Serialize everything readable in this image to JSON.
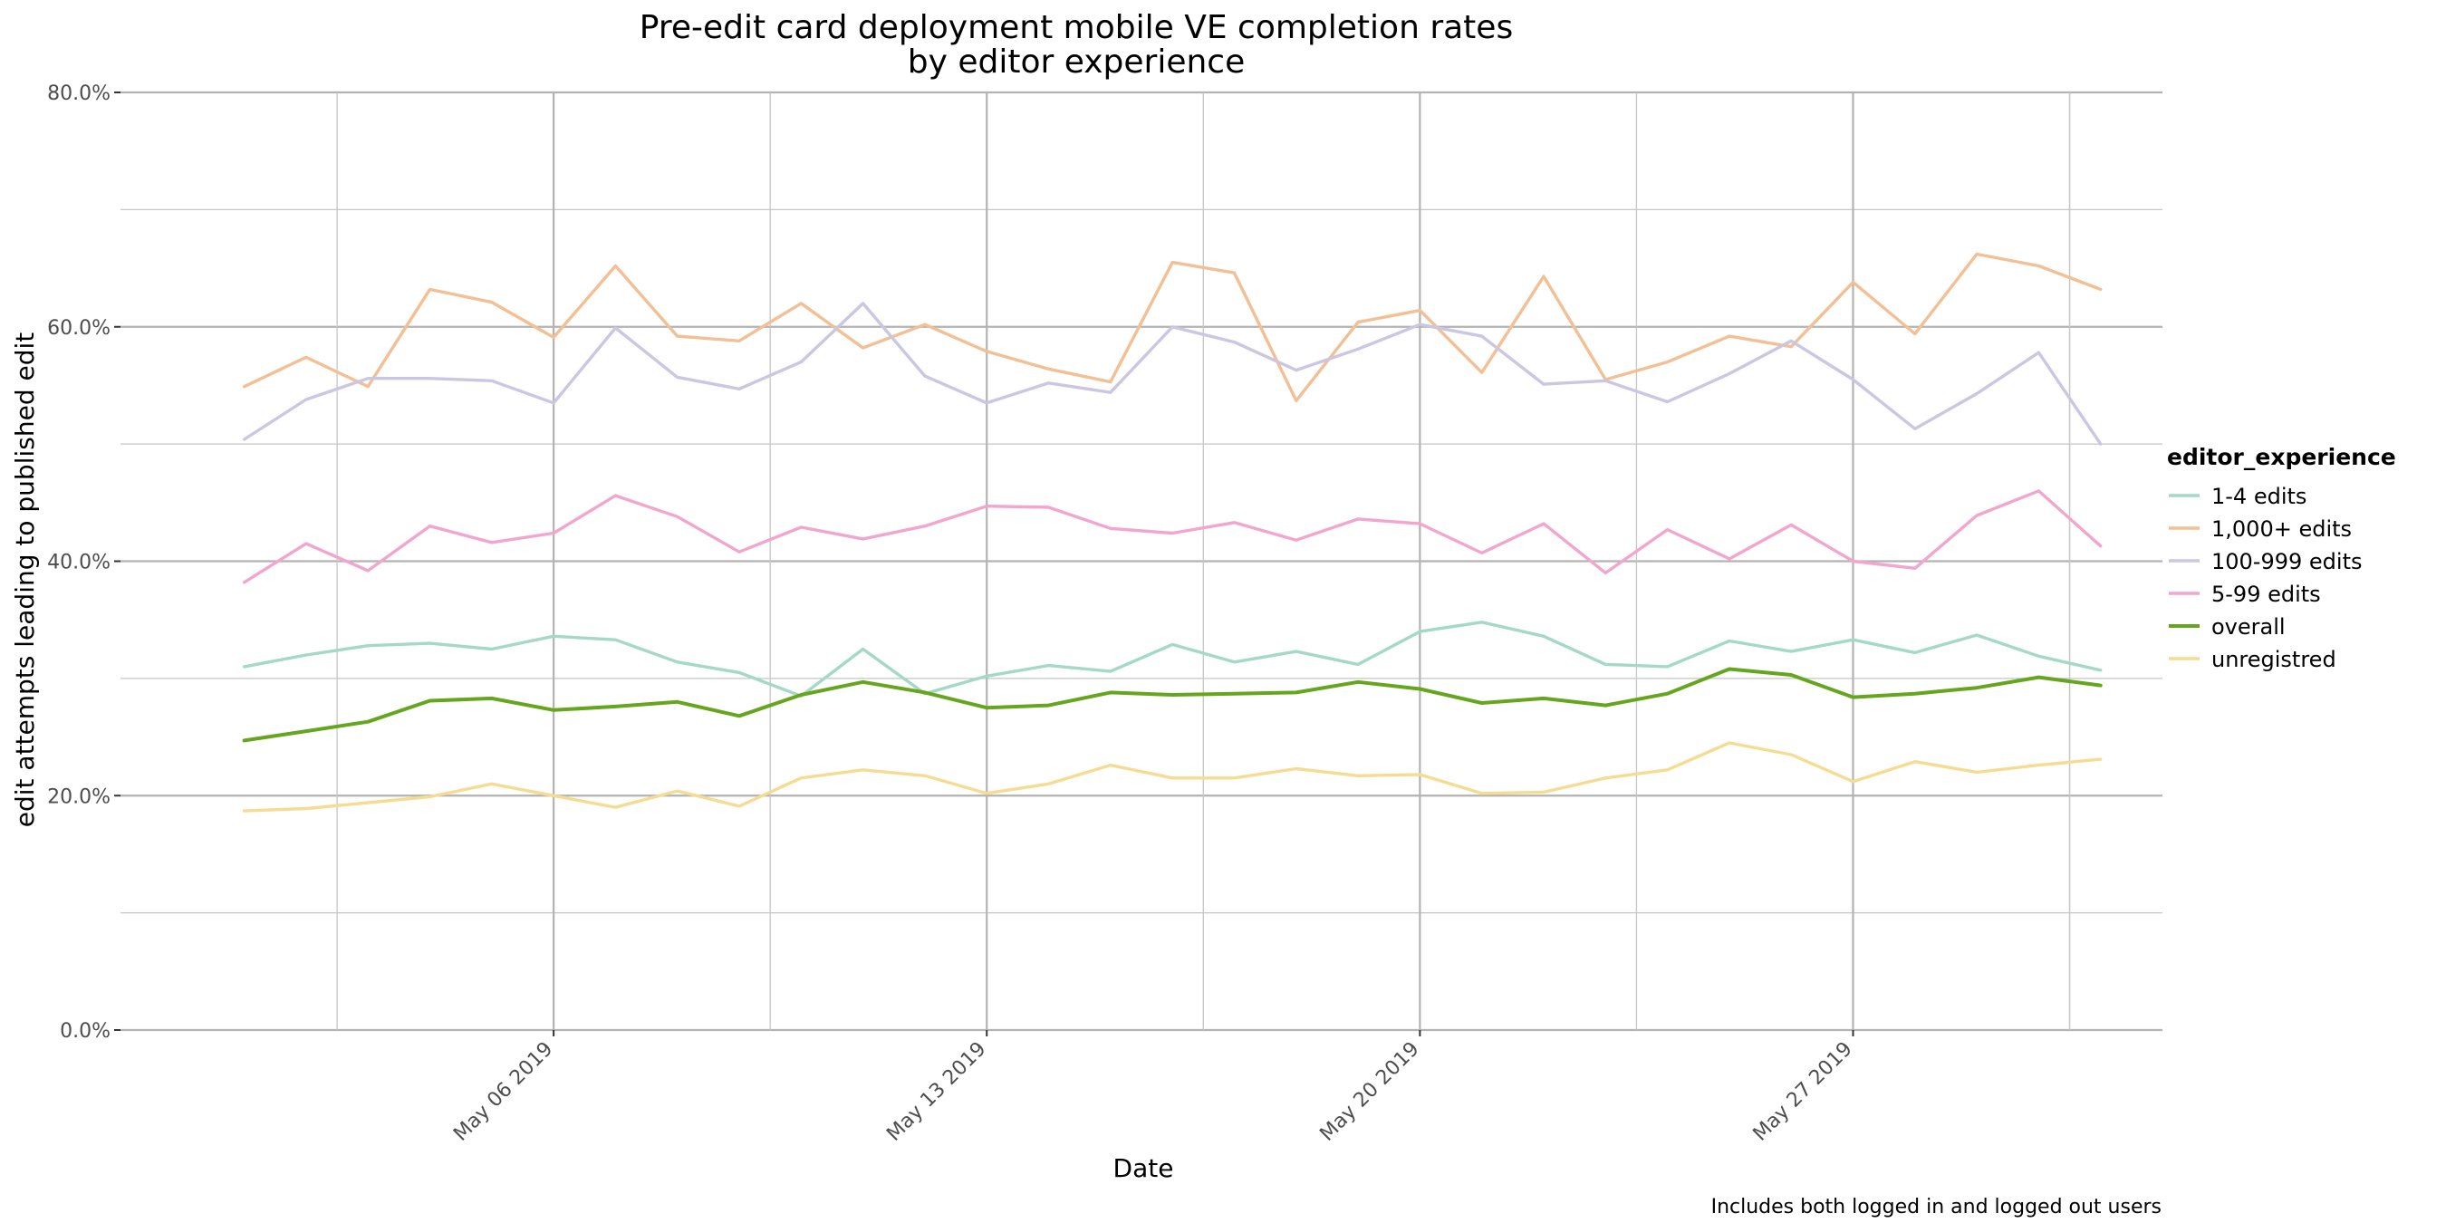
{
  "chart_data": {
    "type": "line",
    "title": "Pre-edit card deployment mobile VE completion rates",
    "subtitle": "by editor experience",
    "xlabel": "Date",
    "ylabel": "edit attempts leading to published edit",
    "caption": "Includes both logged in and logged out users",
    "x_ticks": [
      "May 06 2019",
      "May 13 2019",
      "May 20 2019",
      "May 27 2019"
    ],
    "y_ticks": [
      "0.0%",
      "20.0%",
      "40.0%",
      "60.0%",
      "80.0%"
    ],
    "ylim": [
      0,
      0.8
    ],
    "xlim": [
      "2019-04-29",
      "2019-06-01"
    ],
    "grid": true,
    "legend": {
      "title": "editor_experience",
      "position": "right"
    },
    "x": [
      "2019-05-01",
      "2019-05-02",
      "2019-05-03",
      "2019-05-04",
      "2019-05-05",
      "2019-05-06",
      "2019-05-07",
      "2019-05-08",
      "2019-05-09",
      "2019-05-10",
      "2019-05-11",
      "2019-05-12",
      "2019-05-13",
      "2019-05-14",
      "2019-05-15",
      "2019-05-16",
      "2019-05-17",
      "2019-05-18",
      "2019-05-19",
      "2019-05-20",
      "2019-05-21",
      "2019-05-22",
      "2019-05-23",
      "2019-05-24",
      "2019-05-25",
      "2019-05-26",
      "2019-05-27",
      "2019-05-28",
      "2019-05-29",
      "2019-05-30",
      "2019-05-31"
    ],
    "series": [
      {
        "name": "1-4 edits",
        "color": "#a3d9c6",
        "values": [
          0.31,
          0.32,
          0.328,
          0.33,
          0.325,
          0.336,
          0.333,
          0.314,
          0.305,
          0.285,
          0.325,
          0.287,
          0.302,
          0.311,
          0.306,
          0.329,
          0.314,
          0.323,
          0.312,
          0.34,
          0.348,
          0.336,
          0.312,
          0.31,
          0.332,
          0.323,
          0.333,
          0.322,
          0.337,
          0.319,
          0.307
        ]
      },
      {
        "name": "1,000+ edits",
        "color": "#f3bf94",
        "values": [
          0.549,
          0.574,
          0.549,
          0.632,
          0.621,
          0.591,
          0.652,
          0.592,
          0.588,
          0.62,
          0.582,
          0.602,
          0.579,
          0.564,
          0.553,
          0.655,
          0.646,
          0.537,
          0.604,
          0.614,
          0.561,
          0.643,
          0.555,
          0.57,
          0.592,
          0.583,
          0.638,
          0.594,
          0.662,
          0.652,
          0.632
        ]
      },
      {
        "name": "100-999 edits",
        "color": "#cbc6e2",
        "values": [
          0.504,
          0.538,
          0.556,
          0.556,
          0.554,
          0.535,
          0.599,
          0.557,
          0.547,
          0.57,
          0.62,
          0.558,
          0.535,
          0.552,
          0.544,
          0.6,
          0.587,
          0.563,
          0.581,
          0.602,
          0.592,
          0.551,
          0.554,
          0.536,
          0.56,
          0.588,
          0.555,
          0.513,
          0.543,
          0.578,
          0.5
        ]
      },
      {
        "name": "5-99 edits",
        "color": "#f2a6ce",
        "values": [
          0.382,
          0.415,
          0.392,
          0.43,
          0.416,
          0.424,
          0.456,
          0.438,
          0.408,
          0.429,
          0.419,
          0.43,
          0.447,
          0.446,
          0.428,
          0.424,
          0.433,
          0.418,
          0.436,
          0.432,
          0.407,
          0.432,
          0.39,
          0.427,
          0.402,
          0.431,
          0.4,
          0.394,
          0.439,
          0.46,
          0.413
        ]
      },
      {
        "name": "overall",
        "color": "#66a61e",
        "values": [
          0.247,
          0.255,
          0.263,
          0.281,
          0.283,
          0.273,
          0.276,
          0.28,
          0.268,
          0.286,
          0.297,
          0.288,
          0.275,
          0.277,
          0.288,
          0.286,
          0.287,
          0.288,
          0.297,
          0.291,
          0.279,
          0.283,
          0.277,
          0.287,
          0.308,
          0.303,
          0.284,
          0.287,
          0.292,
          0.301,
          0.294
        ]
      },
      {
        "name": "unregistred",
        "color": "#f6dc92",
        "values": [
          0.187,
          0.189,
          0.194,
          0.199,
          0.21,
          0.2,
          0.19,
          0.204,
          0.191,
          0.215,
          0.222,
          0.217,
          0.202,
          0.21,
          0.226,
          0.215,
          0.215,
          0.223,
          0.217,
          0.218,
          0.202,
          0.203,
          0.215,
          0.222,
          0.245,
          0.235,
          0.212,
          0.229,
          0.22,
          0.226,
          0.231
        ]
      }
    ]
  }
}
